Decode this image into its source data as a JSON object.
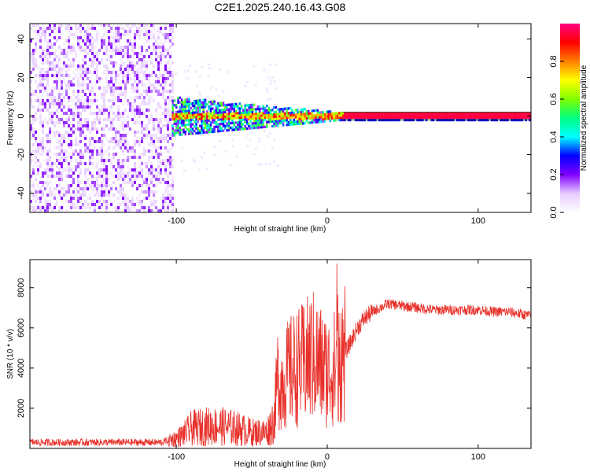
{
  "chart_data": [
    {
      "type": "heatmap",
      "title": "C2E1.2025.240.16.43.G08",
      "xlabel": "Height of straight line (km)",
      "ylabel": "Frequency (Hz)",
      "xlim": [
        -197,
        135
      ],
      "ylim": [
        -50,
        48
      ],
      "x_ticks": [
        -100,
        0,
        100
      ],
      "x_tick_labels": [
        "-100",
        "0",
        "100"
      ],
      "y_ticks": [
        40,
        20,
        0,
        -20,
        -40
      ],
      "y_tick_labels": [
        "40",
        "20",
        "0",
        "-20",
        "-40"
      ],
      "noise_region_x": [
        -197,
        -103
      ],
      "signal_band_hz": [
        -2,
        2
      ],
      "colorbar": {
        "label": "Normalized spectral amplitude",
        "range": [
          0,
          1
        ],
        "ticks": [
          0.0,
          0.2,
          0.4,
          0.6,
          0.8
        ],
        "tick_labels": [
          "0.0",
          "0.2",
          "0.4",
          "0.6",
          "0.8"
        ],
        "colors": [
          "#ffffff",
          "#e6ccff",
          "#8000ff",
          "#0000ff",
          "#00ffff",
          "#00ff80",
          "#80ff00",
          "#ffff00",
          "#ff8000",
          "#ff0000",
          "#ff0080"
        ]
      }
    },
    {
      "type": "line",
      "xlabel": "Height of straight line (km)",
      "ylabel": "SNR (10 * v/v)",
      "xlim": [
        -197,
        135
      ],
      "ylim": [
        0,
        9400
      ],
      "x_ticks": [
        -100,
        0,
        100
      ],
      "x_tick_labels": [
        "-100",
        "0",
        "100"
      ],
      "y_ticks": [
        2000,
        4000,
        6000,
        8000
      ],
      "y_tick_labels": [
        "2000",
        "4000",
        "6000",
        "8000"
      ],
      "color": "#e8302a",
      "series_envelope": {
        "x": [
          -197,
          -110,
          -100,
          -95,
          -90,
          -80,
          -70,
          -60,
          -55,
          -50,
          -45,
          -40,
          -35,
          -33,
          -30,
          -25,
          -20,
          -15,
          -10,
          -5,
          0,
          5,
          8,
          10,
          15,
          20,
          25,
          30,
          35,
          40,
          50,
          60,
          70,
          80,
          90,
          100,
          110,
          120,
          135
        ],
        "y": [
          300,
          300,
          500,
          700,
          1000,
          1100,
          1100,
          1000,
          900,
          800,
          800,
          800,
          1500,
          3500,
          3200,
          3800,
          4000,
          4200,
          4600,
          4200,
          3800,
          4000,
          5000,
          4500,
          5200,
          6000,
          6500,
          6800,
          7000,
          7200,
          7100,
          7000,
          6900,
          6900,
          6900,
          6900,
          6800,
          6800,
          6600
        ]
      }
    }
  ]
}
